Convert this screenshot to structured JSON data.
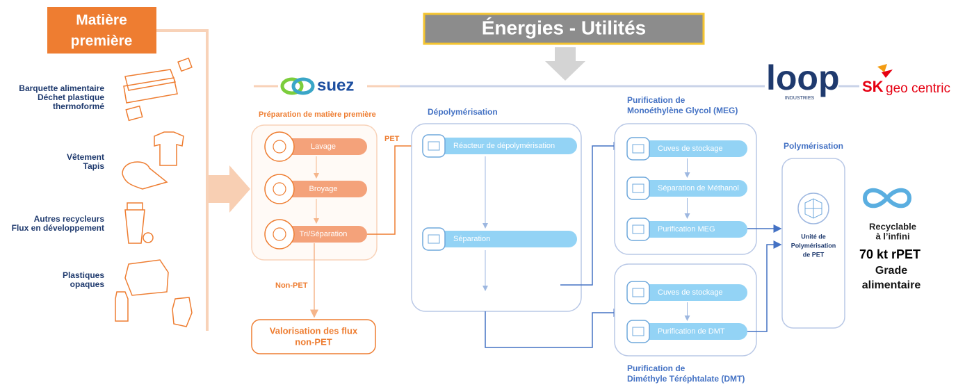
{
  "header": {
    "raw_material": [
      "Matière",
      "première"
    ],
    "energies": "Énergies - Utilités"
  },
  "logos": {
    "suez": "suez",
    "loop": "loop",
    "loop_sub": "INDUSTRIES",
    "sk": "SK",
    "sk_sub": "geo centric"
  },
  "inputs": [
    [
      "Barquette alimentaire",
      "Déchet plastique",
      "thermoformé"
    ],
    [
      "Vêtement",
      "Tapis"
    ],
    [
      "Autres recycleurs",
      "Flux en développement"
    ],
    [
      "Plastiques",
      "opaques"
    ]
  ],
  "preparation": {
    "title": "Préparation de matière première",
    "steps": [
      "Lavage",
      "Broyage",
      "Tri/Séparation"
    ]
  },
  "flows": {
    "pet": "PET",
    "non_pet": "Non-PET"
  },
  "valorisation": [
    "Valorisation des flux",
    "non-PET"
  ],
  "depolymerisation": {
    "title": "Dépolymérisation",
    "steps": [
      "Réacteur de dépolymérisation",
      "Séparation"
    ]
  },
  "meg": {
    "title": [
      "Purification de",
      "Monoéthylène Glycol (MEG)"
    ],
    "steps": [
      "Cuves de stockage",
      "Séparation de Méthanol",
      "Purification MEG"
    ]
  },
  "dmt": {
    "title": [
      "Purification de",
      "Diméthyle Téréphtalate (DMT)"
    ],
    "steps": [
      "Cuves de stockage",
      "Purification de DMT"
    ]
  },
  "polymerisation": {
    "title": "Polymérisation",
    "unit": [
      "Unité de",
      "Polymérisation",
      "de PET"
    ]
  },
  "result": {
    "recyclable": [
      "Recyclable",
      "à l’infini"
    ],
    "capacity": "70 kt rPET",
    "grade": [
      "Grade",
      "alimentaire"
    ]
  }
}
